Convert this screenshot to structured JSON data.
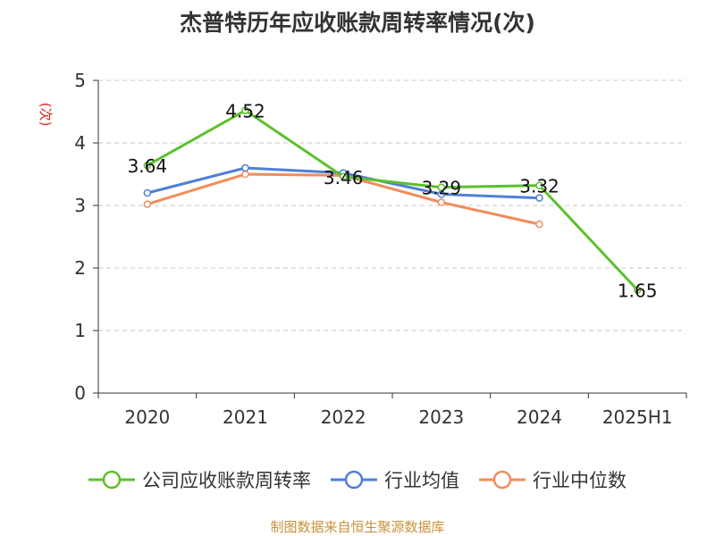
{
  "title": "杰普特历年应收账款周转率情况(次)",
  "source": "制图数据来自恒生聚源数据库",
  "chart_data": {
    "type": "line",
    "title": "杰普特历年应收账款周转率情况(次)",
    "ylabel": "(次)",
    "xlabel": "",
    "categories": [
      "2020",
      "2021",
      "2022",
      "2023",
      "2024",
      "2025H1"
    ],
    "ylim": [
      0,
      5
    ],
    "yticks": [
      0,
      1,
      2,
      3,
      4,
      5
    ],
    "grid": "horizontal-dashed",
    "legend_position": "bottom",
    "series": [
      {
        "name": "公司应收账款周转率",
        "color": "#5cc12c",
        "values": [
          3.64,
          4.52,
          3.46,
          3.29,
          3.32,
          1.65
        ],
        "labels": [
          "3.64",
          "4.52",
          "3.46",
          "3.29",
          "3.32",
          "1.65"
        ]
      },
      {
        "name": "行业均值",
        "color": "#4f7fd8",
        "values": [
          3.2,
          3.6,
          3.52,
          3.18,
          3.12,
          null
        ]
      },
      {
        "name": "行业中位数",
        "color": "#f28c5a",
        "values": [
          3.02,
          3.5,
          3.48,
          3.05,
          2.7,
          null
        ]
      }
    ]
  }
}
